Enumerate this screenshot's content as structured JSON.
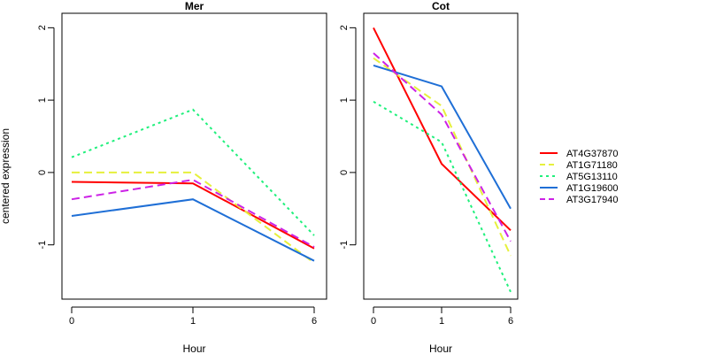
{
  "chart_data": [
    {
      "type": "line",
      "title": "Mer",
      "xlabel": "Hour",
      "ylabel": "centered expression",
      "categories": [
        "0",
        "1",
        "6"
      ],
      "ylim": [
        -1.75,
        2.2
      ],
      "yticks": [
        "-1",
        "0",
        "1",
        "2"
      ],
      "series": [
        {
          "name": "AT4G37870",
          "values": [
            -0.13,
            -0.15,
            -1.05
          ],
          "color": "#ff0000",
          "dash": "solid"
        },
        {
          "name": "AT1G71180",
          "values": [
            0.0,
            0.0,
            -1.25
          ],
          "color": "#e6f03c",
          "dash": "dashed"
        },
        {
          "name": "AT5G13110",
          "values": [
            0.21,
            0.87,
            -0.87
          ],
          "color": "#20f07c",
          "dash": "dotted"
        },
        {
          "name": "AT1G19600",
          "values": [
            -0.6,
            -0.37,
            -1.22
          ],
          "color": "#1f6fd6",
          "dash": "solid"
        },
        {
          "name": "AT3G17940",
          "values": [
            -0.37,
            -0.1,
            -1.03
          ],
          "color": "#cc22e6",
          "dash": "dashed"
        }
      ]
    },
    {
      "type": "line",
      "title": "Cot",
      "xlabel": "Hour",
      "ylabel": "",
      "categories": [
        "0",
        "1",
        "6"
      ],
      "ylim": [
        -1.75,
        2.2
      ],
      "yticks": [
        "-1",
        "0",
        "1",
        "2"
      ],
      "series": [
        {
          "name": "AT4G37870",
          "values": [
            2.0,
            0.12,
            -0.8
          ],
          "color": "#ff0000",
          "dash": "solid"
        },
        {
          "name": "AT1G71180",
          "values": [
            1.58,
            0.92,
            -1.15
          ],
          "color": "#e6f03c",
          "dash": "dashed"
        },
        {
          "name": "AT5G13110",
          "values": [
            0.98,
            0.42,
            -1.65
          ],
          "color": "#20f07c",
          "dash": "dotted"
        },
        {
          "name": "AT1G19600",
          "values": [
            1.48,
            1.19,
            -0.5
          ],
          "color": "#1f6fd6",
          "dash": "solid"
        },
        {
          "name": "AT3G17940",
          "values": [
            1.65,
            0.8,
            -0.95
          ],
          "color": "#cc22e6",
          "dash": "dashed"
        }
      ]
    }
  ],
  "legend": {
    "placement": "right",
    "entries": [
      {
        "label": "AT4G37870",
        "color": "#ff0000",
        "dash": "solid"
      },
      {
        "label": "AT1G71180",
        "color": "#e6f03c",
        "dash": "dashed"
      },
      {
        "label": "AT5G13110",
        "color": "#20f07c",
        "dash": "dotted"
      },
      {
        "label": "AT1G19600",
        "color": "#1f6fd6",
        "dash": "solid"
      },
      {
        "label": "AT3G17940",
        "color": "#cc22e6",
        "dash": "dashed"
      }
    ]
  }
}
